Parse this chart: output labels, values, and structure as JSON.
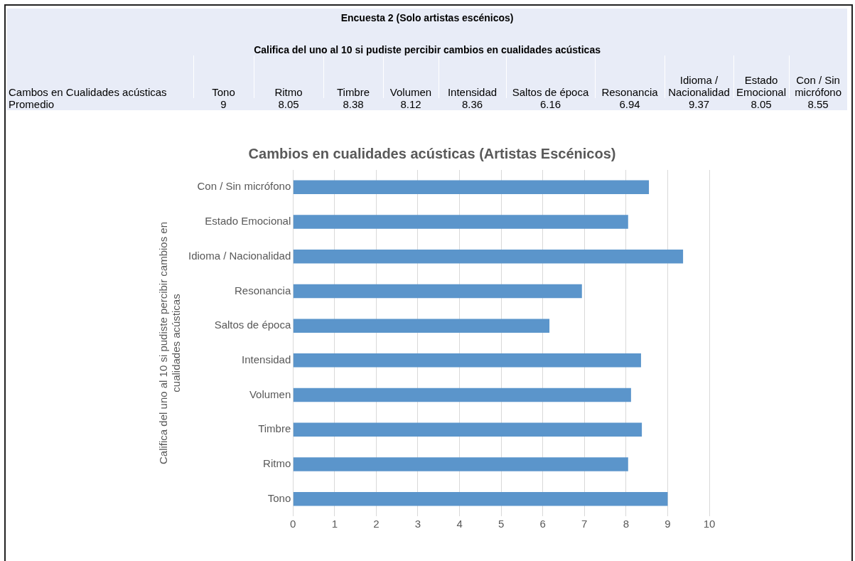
{
  "chart_data": [
    {
      "type": "other",
      "title": "Encuesta 2 (Solo artistas escénicos)",
      "subtitle": "Califica del uno al 10 si pudiste percibir cambios en cualidades acústicas",
      "annotations": [
        "Cambos en Cualidades acústicas",
        "Promedio"
      ],
      "categories": [
        "Tono",
        "Ritmo",
        "Timbre",
        "Volumen",
        "Intensidad",
        "Saltos de época",
        "Resonancia",
        "Idioma / Nacionalidad",
        "Estado Emocional",
        "Con / Sin micrófono"
      ],
      "values": [
        9,
        8.05,
        8.38,
        8.12,
        8.36,
        6.16,
        6.94,
        9.37,
        8.05,
        8.55
      ],
      "data_labels": true
    },
    {
      "type": "bar",
      "orientation": "horizontal",
      "title": "Cambios en cualidades acústicas (Artistas Escénicos)",
      "ylabel": "Califica del uno al 10 si pudiste percibir cambios en cualidades acústicas",
      "categories": [
        "Con / Sin micrófono",
        "Estado Emocional",
        "Idioma / Nacionalidad",
        "Resonancia",
        "Saltos de época",
        "Intensidad",
        "Volumen",
        "Timbre",
        "Ritmo",
        "Tono"
      ],
      "values": [
        8.55,
        8.05,
        9.37,
        6.94,
        6.16,
        8.36,
        8.12,
        8.38,
        8.05,
        9
      ],
      "color": "#5b95cb",
      "xlim": [
        0,
        10
      ],
      "xticks": [
        0,
        1,
        2,
        3,
        4,
        5,
        6,
        7,
        8,
        9,
        10
      ],
      "grid": "x",
      "legend": false
    }
  ]
}
